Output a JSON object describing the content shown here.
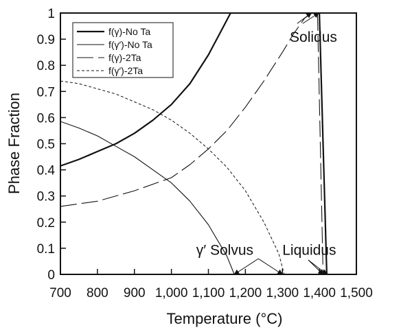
{
  "chart_data": {
    "type": "line",
    "xlabel": "Temperature (°C)",
    "ylabel": "Phase Fraction",
    "xlim": [
      700,
      1500
    ],
    "ylim": [
      0,
      1
    ],
    "x_ticks": [
      700,
      800,
      900,
      1000,
      1100,
      1200,
      1300,
      1400,
      1500
    ],
    "x_tick_labels": [
      "700",
      "800",
      "900",
      "1,000",
      "1,100",
      "1,200",
      "1,300",
      "1,400",
      "1,500"
    ],
    "y_ticks": [
      0,
      0.1,
      0.2,
      0.3,
      0.4,
      0.5,
      0.6,
      0.7,
      0.8,
      0.9,
      1
    ],
    "y_tick_labels": [
      "0",
      "0.1",
      "0.2",
      "0.3",
      "0.4",
      "0.5",
      "0.6",
      "0.7",
      "0.8",
      "0.9",
      "1"
    ],
    "grid": false,
    "legend_position": "top-left",
    "series": [
      {
        "name": "f(γ)-No Ta",
        "style": "solid-thick",
        "color": "#111111",
        "x": [
          700,
          750,
          800,
          850,
          900,
          950,
          1000,
          1050,
          1100,
          1130,
          1160,
          1360,
          1400,
          1420
        ],
        "y": [
          0.415,
          0.44,
          0.47,
          0.5,
          0.54,
          0.59,
          0.65,
          0.73,
          0.84,
          0.92,
          1.0,
          1.0,
          1.0,
          0.0
        ]
      },
      {
        "name": "f(γ′)-No Ta",
        "style": "solid-thin",
        "color": "#111111",
        "x": [
          700,
          750,
          800,
          850,
          900,
          950,
          1000,
          1050,
          1100,
          1150,
          1170
        ],
        "y": [
          0.585,
          0.56,
          0.53,
          0.49,
          0.45,
          0.4,
          0.35,
          0.28,
          0.19,
          0.07,
          0.0
        ]
      },
      {
        "name": "f(γ)-2Ta",
        "style": "long-dash",
        "color": "#111111",
        "x": [
          700,
          800,
          900,
          1000,
          1050,
          1100,
          1150,
          1200,
          1250,
          1300,
          1330,
          1360,
          1380,
          1395,
          1410
        ],
        "y": [
          0.26,
          0.28,
          0.32,
          0.37,
          0.42,
          0.48,
          0.55,
          0.64,
          0.74,
          0.85,
          0.92,
          0.98,
          1.0,
          1.0,
          0.0
        ]
      },
      {
        "name": "f(γ′)-2Ta",
        "style": "short-dash",
        "color": "#111111",
        "x": [
          700,
          750,
          800,
          850,
          900,
          950,
          1000,
          1050,
          1100,
          1150,
          1200,
          1250,
          1290,
          1305
        ],
        "y": [
          0.74,
          0.73,
          0.71,
          0.69,
          0.66,
          0.63,
          0.59,
          0.54,
          0.48,
          0.41,
          0.32,
          0.2,
          0.08,
          0.0
        ]
      }
    ],
    "annotations": [
      {
        "text": "Solidus",
        "x": 1320,
        "y": 0.89
      },
      {
        "text": "γ′ Solvus",
        "x": 1067,
        "y": 0.075
      },
      {
        "text": "Liquidus",
        "x": 1300,
        "y": 0.075
      }
    ]
  }
}
